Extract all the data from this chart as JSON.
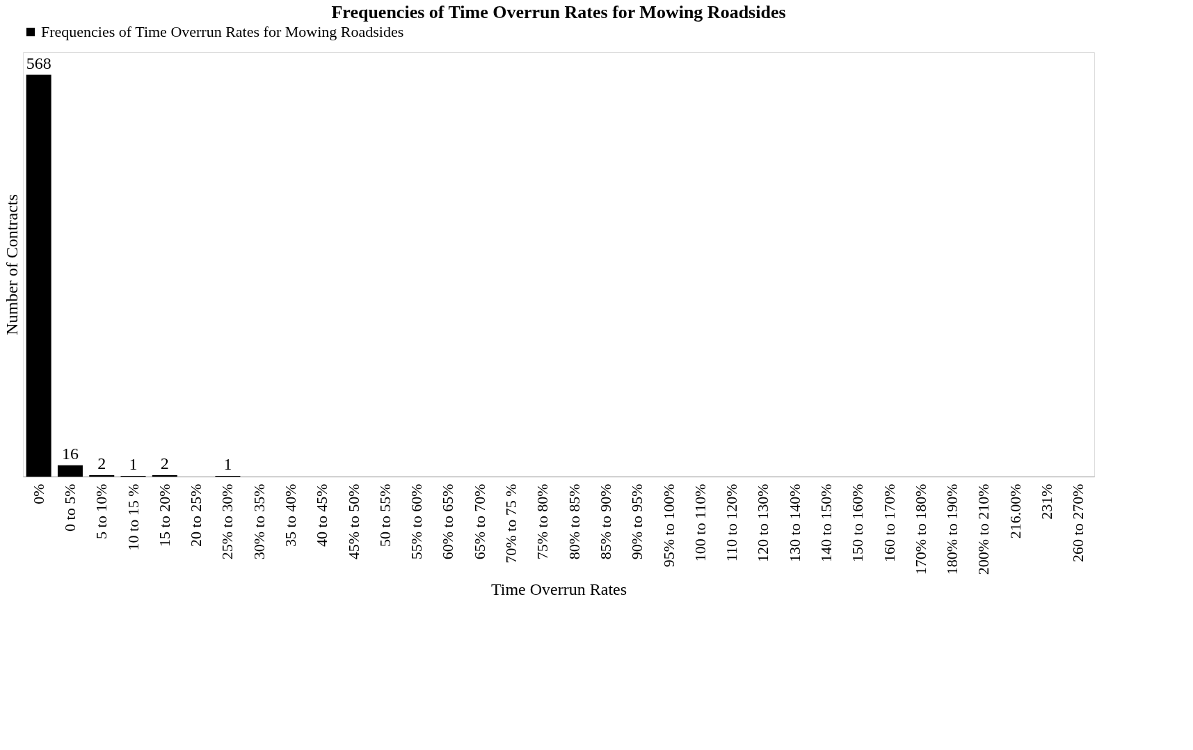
{
  "chart_data": {
    "type": "bar",
    "title": "Frequencies of Time Overrun Rates for Mowing Roadsides",
    "xlabel": "Time Overrun Rates",
    "ylabel": "Number of Contracts",
    "categories": [
      "0%",
      "0 to  5%",
      "5 to 10%",
      "10 to 15 %",
      "15 to 20%",
      "20 to 25%",
      "25% to 30%",
      "30% to 35%",
      "35 to 40%",
      "40 to 45%",
      "45% to 50%",
      "50 to 55%",
      "55% to 60%",
      "60% to 65%",
      "65% to 70%",
      "70% to 75 %",
      "75% to 80%",
      "80% to 85%",
      "85% to 90%",
      "90% to 95%",
      "95% to 100%",
      "100 to 110%",
      "110 to 120%",
      "120 to 130%",
      "130 to 140%",
      "140 to 150%",
      "150 to 160%",
      "160 to 170%",
      "170% to  180%",
      "180% to  190%",
      "200% to  210%",
      "216.00%",
      "231%",
      "260 to 270%"
    ],
    "series": [
      {
        "name": "Frequencies of Time Overrun Rates for Mowing Roadsides",
        "color": "#000000",
        "values": [
          568,
          16,
          2,
          1,
          2,
          null,
          1,
          null,
          null,
          null,
          null,
          null,
          null,
          null,
          null,
          null,
          null,
          null,
          null,
          null,
          null,
          null,
          null,
          null,
          null,
          null,
          null,
          null,
          null,
          null,
          null,
          null,
          null,
          null
        ]
      }
    ],
    "data_labels": true,
    "legend": "top",
    "grid": false
  }
}
